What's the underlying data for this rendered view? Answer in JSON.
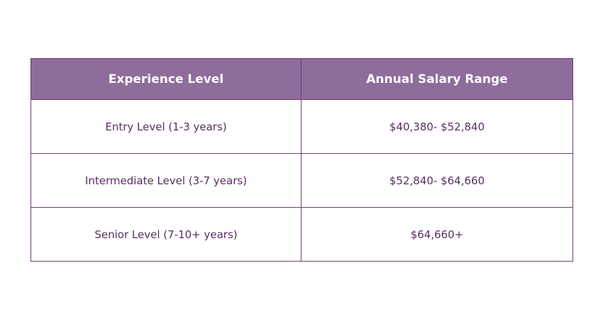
{
  "colors": {
    "header_background": "#8e6c9c",
    "header_text": "#ffffff",
    "cell_text": "#5a2d63",
    "border": "#6b3d72"
  },
  "table": {
    "headers": [
      "Experience Level",
      "Annual Salary Range"
    ],
    "rows": [
      [
        "Entry Level (1-3 years)",
        "$40,380- $52,840"
      ],
      [
        "Intermediate Level (3-7 years)",
        "$52,840- $64,660"
      ],
      [
        "Senior Level (7-10+ years)",
        "$64,660+"
      ]
    ]
  }
}
